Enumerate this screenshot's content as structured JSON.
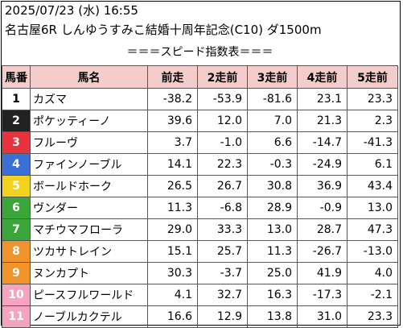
{
  "header": {
    "datetime": "2025/07/23 (水) 16:55",
    "race": "名古屋6R しんゆうすみこ結婚十周年記念(C10) ダ1500m",
    "subtitle": "＝＝＝スピード指数表＝＝＝"
  },
  "table": {
    "columns": [
      "馬番",
      "馬名",
      "前走",
      "2走前",
      "3走前",
      "4走前",
      "5走前"
    ],
    "rows": [
      {
        "no": "1",
        "name": "カズマ",
        "bg": "#ffffff",
        "fg": "#000000",
        "v": [
          "-38.2",
          "-53.9",
          "-81.6",
          "23.1",
          "23.3"
        ]
      },
      {
        "no": "2",
        "name": "ポケッティーノ",
        "bg": "#222222",
        "fg": "#ffffff",
        "v": [
          "39.6",
          "12.0",
          "7.0",
          "21.3",
          "2.3"
        ]
      },
      {
        "no": "3",
        "name": "フルーヴ",
        "bg": "#e8323c",
        "fg": "#ffffff",
        "v": [
          "3.7",
          "-1.0",
          "6.6",
          "-14.7",
          "-41.3"
        ]
      },
      {
        "no": "4",
        "name": "ファインノーブル",
        "bg": "#3a6fd8",
        "fg": "#ffffff",
        "v": [
          "14.1",
          "22.3",
          "-0.3",
          "-24.9",
          "6.1"
        ]
      },
      {
        "no": "5",
        "name": "ボールドホーク",
        "bg": "#f2d21e",
        "fg": "#ffffff",
        "v": [
          "26.5",
          "26.7",
          "30.8",
          "36.9",
          "43.4"
        ]
      },
      {
        "no": "6",
        "name": "ヴンダー",
        "bg": "#3aa63a",
        "fg": "#ffffff",
        "v": [
          "11.3",
          "-6.8",
          "28.9",
          "-0.9",
          "13.0"
        ]
      },
      {
        "no": "7",
        "name": "マチウマフローラ",
        "bg": "#3aa63a",
        "fg": "#ffffff",
        "v": [
          "29.0",
          "33.3",
          "13.0",
          "28.7",
          "47.3"
        ]
      },
      {
        "no": "8",
        "name": "ツカサトレイン",
        "bg": "#f0932b",
        "fg": "#ffffff",
        "v": [
          "15.1",
          "25.7",
          "11.3",
          "-26.7",
          "-13.0"
        ]
      },
      {
        "no": "9",
        "name": "ヌンカプト",
        "bg": "#f0932b",
        "fg": "#ffffff",
        "v": [
          "30.3",
          "-3.7",
          "25.0",
          "41.9",
          "4.0"
        ]
      },
      {
        "no": "10",
        "name": "ピースフルワールド",
        "bg": "#f5a3c0",
        "fg": "#ffffff",
        "v": [
          "4.1",
          "32.7",
          "16.3",
          "-17.3",
          "-2.1"
        ]
      },
      {
        "no": "11",
        "name": "ノーブルカクテル",
        "bg": "#f5a3c0",
        "fg": "#ffffff",
        "v": [
          "16.6",
          "12.9",
          "13.8",
          "31.0",
          "23.3"
        ]
      }
    ]
  },
  "colors": {
    "header_bg": "#f3cccc",
    "border": "#555555"
  }
}
